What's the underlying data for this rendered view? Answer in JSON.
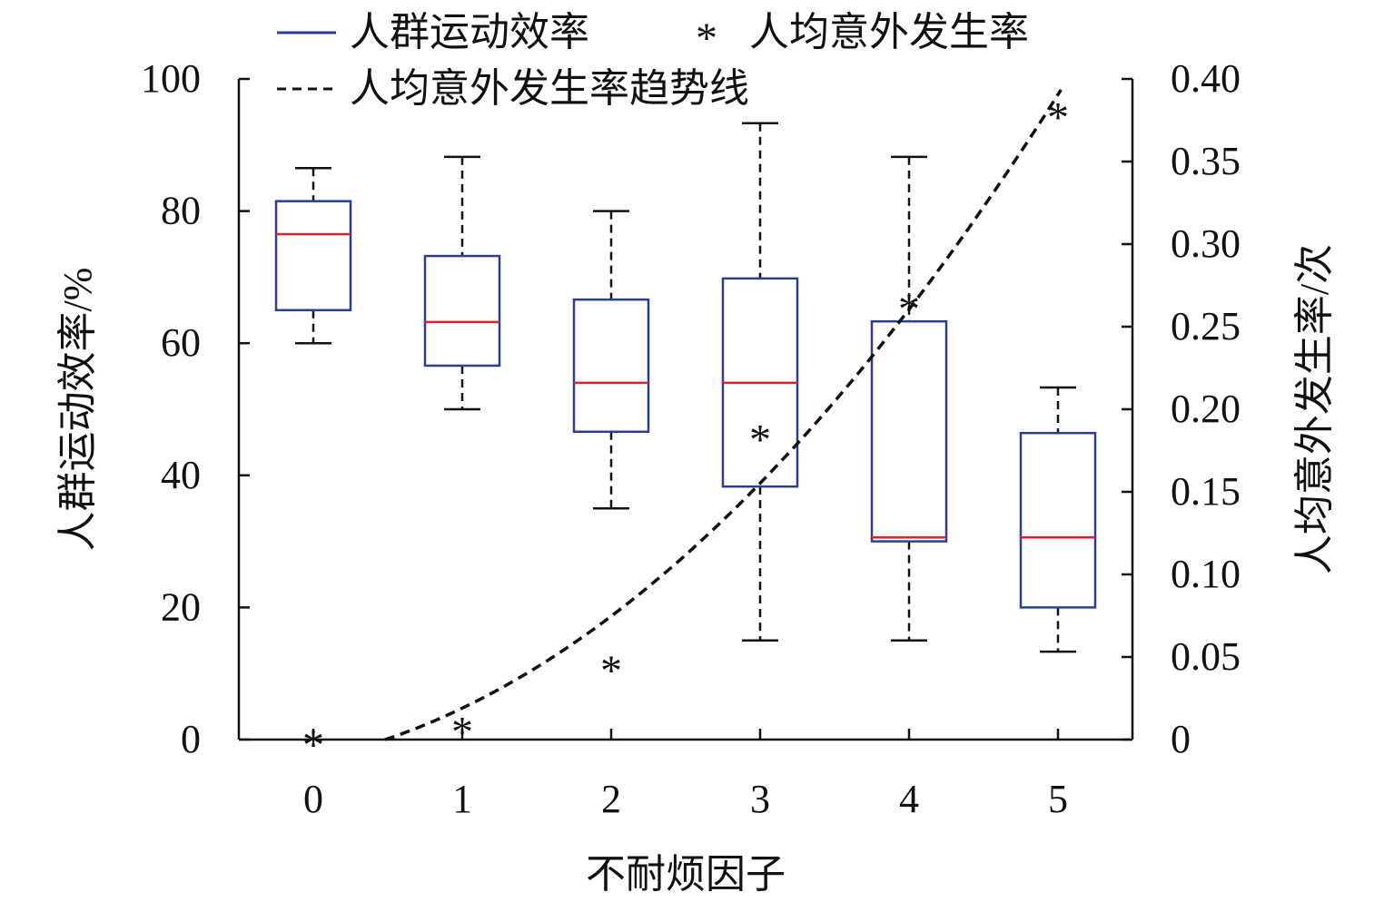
{
  "chart_data": {
    "type": "box",
    "xlabel": "不耐烦因子",
    "ylabel_left": "人群运动效率/%",
    "ylabel_right": "人均意外发生率/次",
    "x_categories": [
      "0",
      "1",
      "2",
      "3",
      "4",
      "5"
    ],
    "ylim_left": [
      0,
      100
    ],
    "ylim_right": [
      0,
      0.4
    ],
    "yticks_left": [
      "0",
      "20",
      "40",
      "60",
      "80",
      "100"
    ],
    "yticks_right": [
      "0",
      "0.05",
      "0.10",
      "0.15",
      "0.20",
      "0.25",
      "0.30",
      "0.35",
      "0.40"
    ],
    "legend": {
      "placement": "top",
      "entries": [
        "人群运动效率",
        "人均意外发生率",
        "人均意外发生率趋势线"
      ]
    },
    "boxes": [
      {
        "x": 0,
        "whisker_low": 60,
        "q1": 65,
        "median": 76.5,
        "q3": 81.5,
        "whisker_high": 86.5
      },
      {
        "x": 1,
        "whisker_low": 50,
        "q1": 56.6,
        "median": 63.2,
        "q3": 73.2,
        "whisker_high": 88.2
      },
      {
        "x": 2,
        "whisker_low": 35,
        "q1": 46.6,
        "median": 54,
        "q3": 66.6,
        "whisker_high": 80
      },
      {
        "x": 3,
        "whisker_low": 15,
        "q1": 38.3,
        "median": 54,
        "q3": 69.8,
        "whisker_high": 93.3
      },
      {
        "x": 4,
        "whisker_low": 15,
        "q1": 30,
        "median": 30.6,
        "q3": 63.3,
        "whisker_high": 88.2
      },
      {
        "x": 5,
        "whisker_low": 13.3,
        "q1": 20,
        "median": 30.6,
        "q3": 46.4,
        "whisker_high": 53.3
      }
    ],
    "accident_rate": {
      "x": [
        0,
        1,
        2,
        3,
        4,
        5
      ],
      "y": [
        0.0,
        0.008,
        0.045,
        0.185,
        0.264,
        0.38
      ]
    },
    "trendline": {
      "type": "quadratic",
      "a": 0.0124,
      "b": 0.0185,
      "c": -0.0119,
      "x_range": [
        0.48,
        5.02
      ]
    },
    "colors": {
      "box": "#2a3f94",
      "median": "#e0202a",
      "whisker": "#111111",
      "marker": "#111111",
      "trend": "#111111"
    }
  }
}
